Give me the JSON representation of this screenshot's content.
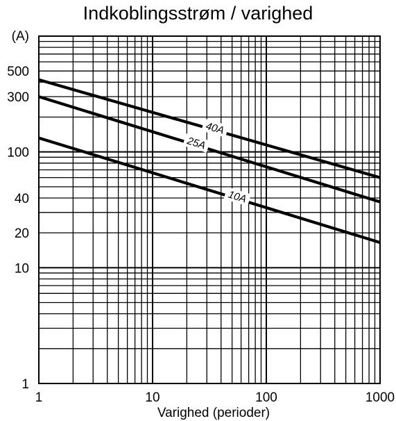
{
  "chart_data": {
    "type": "line",
    "title": "Indkoblingsstrøm / varighed",
    "ylabel": "(A)",
    "xlabel": "Varighed (perioder)",
    "xscale": "log",
    "yscale": "log",
    "xlim": [
      1,
      1000
    ],
    "ylim": [
      1,
      1000
    ],
    "grid": true,
    "x_ticks": [
      {
        "value": 1,
        "label": "1"
      },
      {
        "value": 10,
        "label": "10"
      },
      {
        "value": 100,
        "label": "100"
      },
      {
        "value": 1000,
        "label": "1000"
      }
    ],
    "y_ticks": [
      {
        "value": 1,
        "label": "1"
      },
      {
        "value": 10,
        "label": "10"
      },
      {
        "value": 20,
        "label": "20"
      },
      {
        "value": 40,
        "label": "40"
      },
      {
        "value": 100,
        "label": "100"
      },
      {
        "value": 300,
        "label": "300"
      },
      {
        "value": 500,
        "label": "500"
      }
    ],
    "series": [
      {
        "name": "40A",
        "x": [
          1,
          1000
        ],
        "y": [
          420,
          60
        ],
        "label_at": 35
      },
      {
        "name": "25A",
        "x": [
          1,
          1000
        ],
        "y": [
          300,
          37
        ],
        "label_at": 24
      },
      {
        "name": "10A",
        "x": [
          1,
          1000
        ],
        "y": [
          132,
          16.5
        ],
        "label_at": 55
      }
    ]
  }
}
